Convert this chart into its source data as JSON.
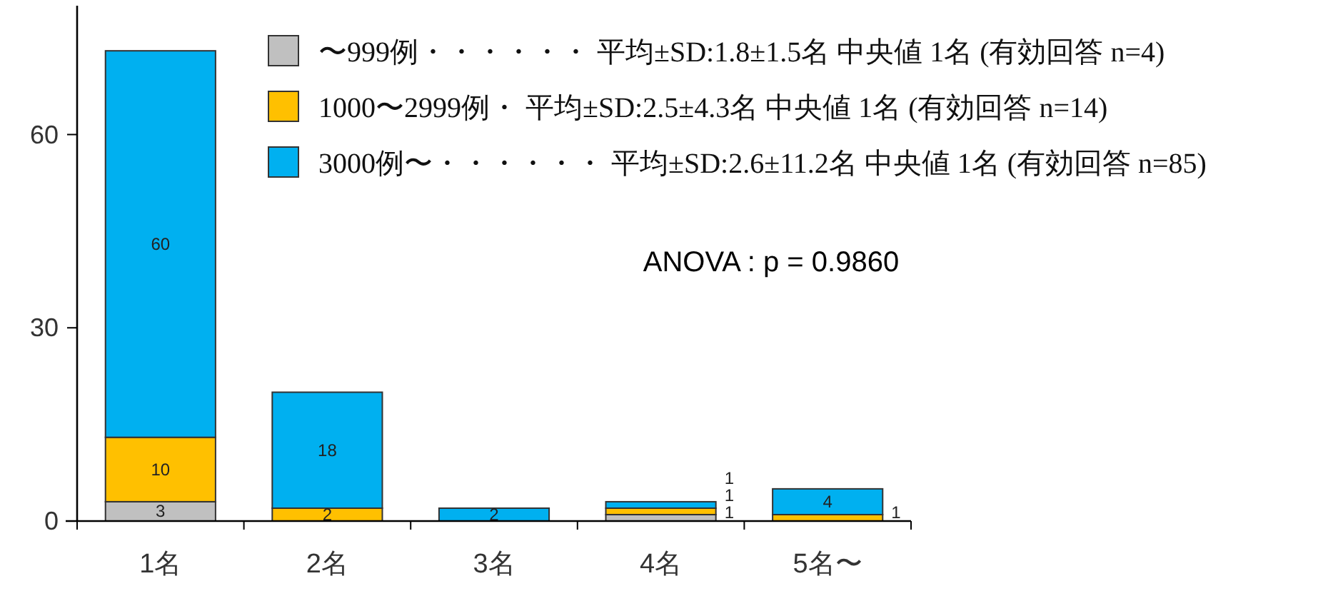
{
  "chart_data": {
    "type": "bar",
    "stacked": true,
    "categories": [
      "1名",
      "2名",
      "3名",
      "4名",
      "5名〜"
    ],
    "series": [
      {
        "name": "〜999例・・・・・・ 平均±SD:1.8±1.5名 中央値 1名 (有効回答 n=4)",
        "color": "#c0c0c0",
        "values": [
          3,
          0,
          0,
          1,
          0
        ],
        "value_labels": [
          "3",
          null,
          null,
          "1",
          null
        ]
      },
      {
        "name": "1000〜2999例・ 平均±SD:2.5±4.3名 中央値 1名 (有効回答 n=14)",
        "color": "#ffc000",
        "values": [
          10,
          2,
          0,
          1,
          1
        ],
        "value_labels": [
          "10",
          "2",
          null,
          "1",
          "1"
        ]
      },
      {
        "name": "3000例〜・・・・・・ 平均±SD:2.6±11.2名 中央値 1名 (有効回答 n=85)",
        "color": "#00b0f0",
        "values": [
          60,
          18,
          2,
          1,
          4
        ],
        "value_labels": [
          "60",
          "18",
          "2",
          "1",
          "4"
        ]
      }
    ],
    "ylim": [
      0,
      80
    ],
    "yticks": [
      0,
      30,
      60
    ],
    "grid": false,
    "legend": "top right",
    "annotations": [
      "ANOVA : p = 0.9860"
    ]
  }
}
